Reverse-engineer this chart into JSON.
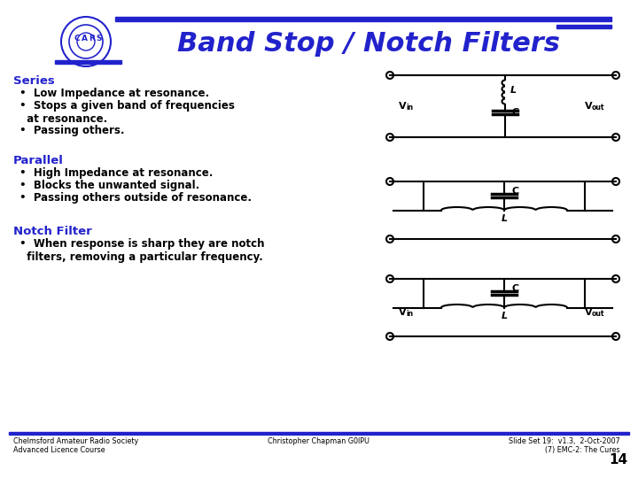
{
  "title": "Band Stop / Notch Filters",
  "blue": "#2222cc",
  "black": "#000000",
  "white": "#ffffff",
  "sections": [
    {
      "heading": "Series",
      "bullets": [
        "Low Impedance at resonance.",
        "Stops a given band of frequencies\n  at resonance.",
        "Passing others."
      ]
    },
    {
      "heading": "Parallel",
      "bullets": [
        "High Impedance at resonance.",
        "Blocks the unwanted signal.",
        "Passing others outside of resonance."
      ]
    },
    {
      "heading": "Notch Filter",
      "bullets": [
        "When response is sharp they are notch\n  filters, removing a particular frequency."
      ]
    }
  ],
  "footer_left": "Chelmsford Amateur Radio Society\nAdvanced Licence Course",
  "footer_center": "Christopher Chapman G0IPU",
  "footer_right": "Slide Set 19:  v1.3,  2-Oct-2007\n(7) EMC-2: The Cures",
  "footer_page": "14"
}
